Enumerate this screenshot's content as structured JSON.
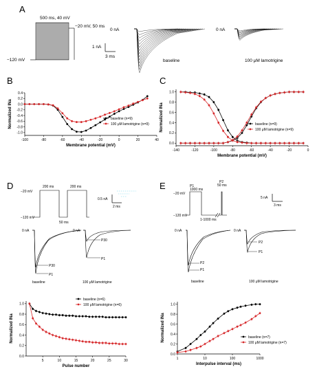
{
  "panels": {
    "A": {
      "letter": "A",
      "protocol": {
        "top_label": "500 ms, 40 mV",
        "step_label": "−20 mV, 50 ms",
        "hold_label": "−120 mV",
        "scale_y": "1 nA",
        "scale_x": "3 ms"
      },
      "baseline": {
        "zero_label": "0 nA",
        "caption": "baseline"
      },
      "drug": {
        "zero_label": "0 nA",
        "caption": "100 μM lamotrigine"
      }
    },
    "B": {
      "letter": "B"
    },
    "C": {
      "letter": "C"
    },
    "D": {
      "letter": "D",
      "protocol": {
        "step1": "200 ms",
        "step2": "200 ms",
        "gap": "50 ms",
        "top": "−20 mV",
        "hold": "−120 mV",
        "scale_y": "0.5 nA",
        "scale_x": "2 ms"
      },
      "trace_base": {
        "zero_label": "0 nA",
        "p30": "P30",
        "p1": "P1",
        "caption": "baseline"
      },
      "trace_drug": {
        "zero_label": "0 nA",
        "p30": "P30",
        "p1": "P1",
        "caption": "100 μM lamotrigine"
      }
    },
    "E": {
      "letter": "E",
      "protocol": {
        "p1": "P1",
        "p1_dur": "1000 ms",
        "p2": "P2",
        "p2_dur": "50 ms",
        "top": "−20 mV",
        "hold": "−120 mV",
        "interval": "1-1000 ms",
        "scale_y": "5 nA",
        "scale_x": "3 ms"
      },
      "trace_base": {
        "zero_label": "0 nA",
        "p2": "P2",
        "p1": "P1",
        "caption": "baseline"
      },
      "trace_drug": {
        "zero_label": "0 nA",
        "p2": "P2",
        "p1": "P1",
        "caption": "100 μM lamotrigine"
      }
    }
  },
  "colors": {
    "baseline": "#000000",
    "lamotrigine": "#d62728",
    "error_bar": "#f4a6b8"
  },
  "chart_data": [
    {
      "id": "B",
      "type": "line",
      "xlabel": "Membrane potential (mV)",
      "ylabel": "Normalized INa",
      "xlim": [
        -100,
        40
      ],
      "ylim": [
        -1.1,
        0.4
      ],
      "xticks": [
        -100,
        -80,
        -60,
        -40,
        -20,
        0,
        20,
        40
      ],
      "yticks": [
        -1.0,
        -0.8,
        -0.6,
        -0.4,
        -0.2,
        0.0,
        0.2,
        0.4
      ],
      "legend_position": "lower-right",
      "series": [
        {
          "name": "baseline (n=9)",
          "x": [
            -100,
            -95,
            -90,
            -85,
            -80,
            -75,
            -70,
            -65,
            -60,
            -55,
            -50,
            -45,
            -40,
            -35,
            -30,
            -25,
            -20,
            -15,
            -10,
            -5,
            0,
            5,
            10,
            15,
            20,
            25,
            30
          ],
          "y": [
            0,
            0,
            0,
            0,
            0,
            -0.01,
            -0.05,
            -0.2,
            -0.45,
            -0.7,
            -0.88,
            -0.97,
            -0.98,
            -0.93,
            -0.84,
            -0.74,
            -0.64,
            -0.54,
            -0.44,
            -0.34,
            -0.25,
            -0.17,
            -0.1,
            -0.02,
            0.06,
            0.15,
            0.28
          ]
        },
        {
          "name": "100 μM lamotrigine (n=9)",
          "x": [
            -100,
            -95,
            -90,
            -85,
            -80,
            -75,
            -70,
            -65,
            -60,
            -55,
            -50,
            -45,
            -40,
            -35,
            -30,
            -25,
            -20,
            -15,
            -10,
            -5,
            0,
            5,
            10,
            15,
            20,
            25,
            30
          ],
          "y": [
            0,
            0,
            0,
            0,
            0,
            -0.01,
            -0.04,
            -0.15,
            -0.32,
            -0.5,
            -0.6,
            -0.63,
            -0.63,
            -0.6,
            -0.55,
            -0.5,
            -0.44,
            -0.37,
            -0.31,
            -0.25,
            -0.18,
            -0.11,
            -0.05,
            0.02,
            0.08,
            0.14,
            0.2
          ]
        }
      ]
    },
    {
      "id": "C",
      "type": "line",
      "xlabel": "Membrane potential (mV)",
      "ylabel": "Normalized INa",
      "xlim": [
        -140,
        0
      ],
      "ylim": [
        -0.05,
        1.05
      ],
      "xticks": [
        -140,
        -120,
        -100,
        -80,
        -60,
        -40,
        -20,
        0
      ],
      "yticks": [
        0.0,
        0.2,
        0.4,
        0.6,
        0.8,
        1.0
      ],
      "legend_position": "center-right",
      "series": [
        {
          "name": "baseline (n=9)",
          "x": [
            -135,
            -130,
            -125,
            -120,
            -115,
            -110,
            -105,
            -100,
            -95,
            -90,
            -85,
            -80,
            -75,
            -70,
            -65,
            -60,
            -55,
            -50,
            -45,
            -40,
            -35,
            -30,
            -25,
            -20,
            -15,
            -10,
            -5
          ],
          "y": [
            1.0,
            1.0,
            0.99,
            0.99,
            0.97,
            0.95,
            0.9,
            0.8,
            0.65,
            0.45,
            0.25,
            0.12,
            0.05,
            0.02,
            0.01,
            0,
            0,
            0,
            0,
            0,
            0,
            0,
            0,
            0,
            0,
            0,
            0
          ],
          "y2": [
            0,
            0,
            0,
            0,
            0,
            0,
            0,
            0,
            0,
            0,
            0.02,
            0.05,
            0.1,
            0.2,
            0.35,
            0.52,
            0.68,
            0.8,
            0.88,
            0.93,
            0.96,
            0.98,
            0.99,
            1.0,
            1.0,
            1.0,
            1.0
          ]
        },
        {
          "name": "100 μM lamotrigine (n=9)",
          "x": [
            -135,
            -130,
            -125,
            -120,
            -115,
            -110,
            -105,
            -100,
            -95,
            -90,
            -85,
            -80,
            -75,
            -70,
            -65,
            -60,
            -55,
            -50,
            -45,
            -40,
            -35,
            -30,
            -25,
            -20,
            -15,
            -10,
            -5
          ],
          "y": [
            1.0,
            0.99,
            0.98,
            0.96,
            0.92,
            0.85,
            0.74,
            0.58,
            0.4,
            0.24,
            0.12,
            0.05,
            0.02,
            0.01,
            0,
            0,
            0,
            0,
            0,
            0,
            0,
            0,
            0,
            0,
            0,
            0,
            0
          ],
          "y2": [
            0,
            0,
            0,
            0,
            0,
            0,
            0,
            0,
            0,
            0,
            0.02,
            0.06,
            0.13,
            0.25,
            0.4,
            0.56,
            0.7,
            0.81,
            0.88,
            0.93,
            0.96,
            0.98,
            0.99,
            1.0,
            1.0,
            1.0,
            1.0
          ]
        }
      ]
    },
    {
      "id": "D",
      "type": "line",
      "xlabel": "Pulse number",
      "ylabel": "Normalized INa",
      "xlim": [
        0,
        30
      ],
      "ylim": [
        0,
        1.05
      ],
      "xticks": [
        5,
        10,
        15,
        20,
        25,
        30
      ],
      "yticks": [
        0.0,
        0.2,
        0.4,
        0.6,
        0.8,
        1.0
      ],
      "legend_position": "top-right",
      "series": [
        {
          "name": "baseline (n=6)",
          "x": [
            1,
            2,
            3,
            4,
            5,
            6,
            7,
            8,
            9,
            10,
            11,
            12,
            13,
            14,
            15,
            16,
            17,
            18,
            19,
            20,
            21,
            22,
            23,
            24,
            25,
            26,
            27,
            28,
            29,
            30
          ],
          "y": [
            1.0,
            0.9,
            0.86,
            0.84,
            0.82,
            0.81,
            0.8,
            0.79,
            0.79,
            0.78,
            0.78,
            0.77,
            0.77,
            0.77,
            0.76,
            0.76,
            0.76,
            0.76,
            0.75,
            0.75,
            0.75,
            0.75,
            0.75,
            0.74,
            0.74,
            0.74,
            0.74,
            0.74,
            0.74,
            0.74
          ]
        },
        {
          "name": "100 μM lamotrigine (n=6)",
          "x": [
            1,
            2,
            3,
            4,
            5,
            6,
            7,
            8,
            9,
            10,
            11,
            12,
            13,
            14,
            15,
            16,
            17,
            18,
            19,
            20,
            21,
            22,
            23,
            24,
            25,
            26,
            27,
            28,
            29,
            30
          ],
          "y": [
            1.0,
            0.72,
            0.62,
            0.56,
            0.5,
            0.46,
            0.43,
            0.4,
            0.38,
            0.36,
            0.34,
            0.33,
            0.32,
            0.31,
            0.3,
            0.29,
            0.28,
            0.27,
            0.27,
            0.26,
            0.26,
            0.25,
            0.25,
            0.25,
            0.24,
            0.24,
            0.24,
            0.23,
            0.23,
            0.23
          ]
        }
      ]
    },
    {
      "id": "E",
      "type": "line",
      "xlabel": "Interpulse interval (ms)",
      "ylabel": "Normalized INa",
      "xscale": "log",
      "xlim": [
        1,
        1000
      ],
      "ylim": [
        0,
        1.05
      ],
      "xticks": [
        1,
        10,
        100,
        1000
      ],
      "yticks": [
        0.0,
        0.2,
        0.4,
        0.6,
        0.8,
        1.0
      ],
      "legend_position": "lower-right",
      "series": [
        {
          "name": "baseline (n=7)",
          "x": [
            1,
            2,
            3,
            5,
            7,
            10,
            15,
            20,
            30,
            50,
            70,
            100,
            150,
            200,
            300,
            500,
            700,
            1000
          ],
          "y": [
            0.05,
            0.12,
            0.2,
            0.3,
            0.38,
            0.45,
            0.55,
            0.62,
            0.71,
            0.81,
            0.86,
            0.9,
            0.93,
            0.95,
            0.97,
            0.99,
            1.0,
            1.0
          ]
        },
        {
          "name": "100 μM lamotrigine (n=7)",
          "x": [
            1,
            2,
            3,
            5,
            7,
            10,
            15,
            20,
            30,
            50,
            70,
            100,
            150,
            200,
            300,
            500,
            700,
            1000
          ],
          "y": [
            0.03,
            0.05,
            0.08,
            0.12,
            0.15,
            0.2,
            0.26,
            0.3,
            0.36,
            0.42,
            0.46,
            0.5,
            0.55,
            0.58,
            0.63,
            0.7,
            0.76,
            0.82
          ]
        }
      ]
    }
  ]
}
